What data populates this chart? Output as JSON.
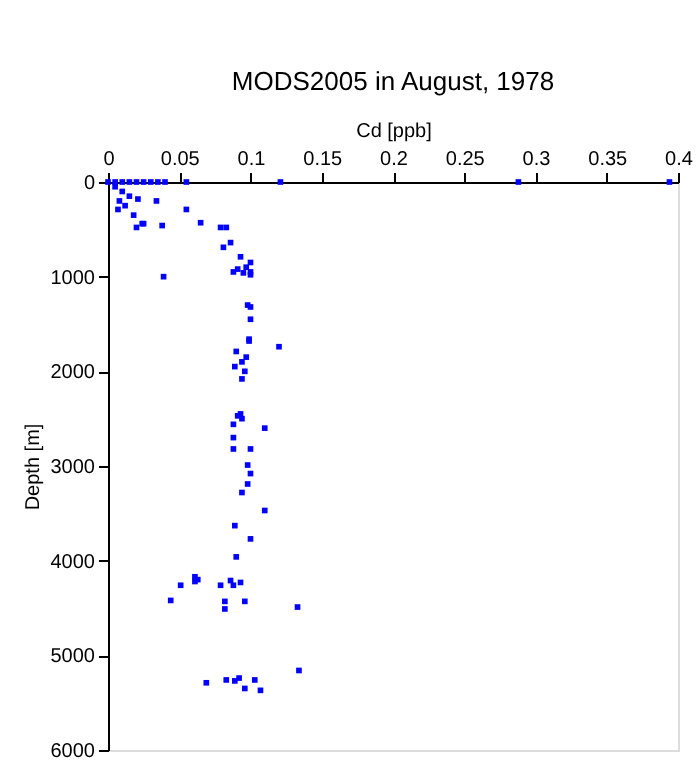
{
  "chart_data": {
    "type": "scatter",
    "title": "MODS2005 in August, 1978",
    "xlabel": "Cd [ppb]",
    "ylabel": "Depth [m]",
    "xlim": [
      0,
      0.4
    ],
    "xticks": [
      0,
      0.05,
      0.1,
      0.15,
      0.2,
      0.25,
      0.3,
      0.35,
      0.4
    ],
    "ylim": [
      6000,
      0
    ],
    "yticks": [
      0,
      1000,
      2000,
      3000,
      4000,
      5000,
      6000
    ],
    "grid": false,
    "legend": false,
    "marker": "square",
    "series": [
      {
        "color": "#0000ff",
        "x": [
          0,
          0.005,
          0.01,
          0.015,
          0.02,
          0.025,
          0.03,
          0.035,
          0.04,
          0.055,
          0.121,
          0.288,
          0.394,
          0.005,
          0.01,
          0.015,
          0.008,
          0.012,
          0.007,
          0.018,
          0.021,
          0.034,
          0.055,
          0.024,
          0.025,
          0.02,
          0.038,
          0.065,
          0.079,
          0.083,
          0.081,
          0.086,
          0.039,
          0.093,
          0.1,
          0.097,
          0.091,
          0.1,
          0.095,
          0.1,
          0.088,
          0.098,
          0.1,
          0.1,
          0.099,
          0.099,
          0.12,
          0.09,
          0.097,
          0.094,
          0.089,
          0.096,
          0.094,
          0.093,
          0.091,
          0.094,
          0.088,
          0.11,
          0.088,
          0.088,
          0.1,
          0.098,
          0.1,
          0.098,
          0.094,
          0.11,
          0.089,
          0.1,
          0.09,
          0.061,
          0.063,
          0.061,
          0.051,
          0.044,
          0.079,
          0.086,
          0.088,
          0.093,
          0.082,
          0.082,
          0.096,
          0.133,
          0.134,
          0.069,
          0.083,
          0.089,
          0.092,
          0.103,
          0.096,
          0.107
        ],
        "values": [
          0,
          0,
          0,
          0,
          0,
          0,
          0,
          0,
          0,
          0,
          0,
          0,
          0,
          50,
          100,
          150,
          200,
          250,
          290,
          350,
          180,
          200,
          290,
          440,
          440,
          480,
          460,
          430,
          480,
          480,
          690,
          640,
          1000,
          790,
          850,
          900,
          920,
          950,
          960,
          980,
          950,
          1300,
          1320,
          1450,
          1660,
          1680,
          1740,
          1790,
          1850,
          1900,
          1950,
          2000,
          2080,
          2450,
          2470,
          2500,
          2560,
          2600,
          2700,
          2820,
          2820,
          2990,
          3080,
          3190,
          3280,
          3470,
          3630,
          3770,
          3960,
          4170,
          4200,
          4220,
          4260,
          4420,
          4260,
          4210,
          4260,
          4230,
          4430,
          4510,
          4430,
          4490,
          5160,
          5290,
          5260,
          5270,
          5240,
          5260,
          5350,
          5370
        ]
      }
    ]
  }
}
